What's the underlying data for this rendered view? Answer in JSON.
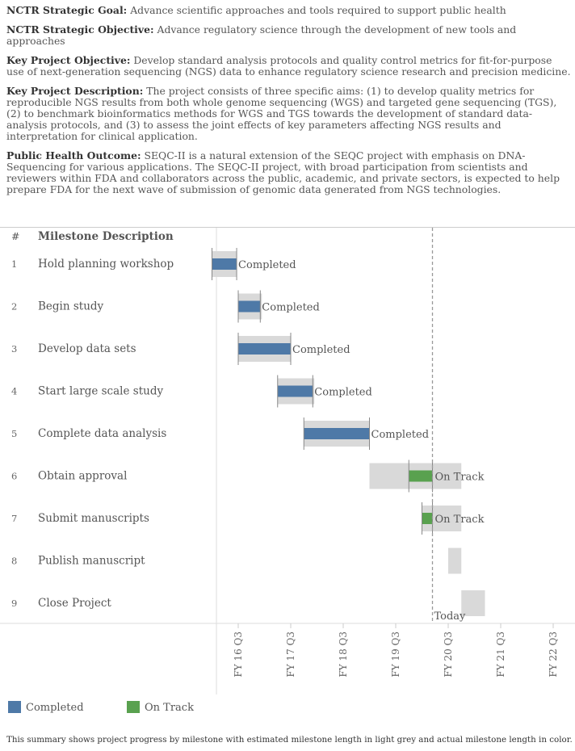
{
  "header": {
    "goal_label": "NCTR Strategic Goal:",
    "goal_text": "Advance scientific approaches and tools required to support public health",
    "objective_label": "NCTR Strategic Objective:",
    "objective_text": "Advance regulatory science through the development of new tools and approaches",
    "key_objective_label": "Key Project Objective:",
    "key_objective_text": "Develop standard analysis protocols and quality control metrics for fit-for-purpose use of next-generation sequencing (NGS) data to enhance regulatory science research and precision medicine.",
    "description_label": "Key Project Description:",
    "description_text": "The project consists of three specific aims: (1) to develop quality metrics for reproducible NGS results from both whole genome sequencing (WGS) and targeted gene sequencing (TGS), (2) to benchmark bioinformatics methods for WGS and TGS towards the development of standard data-analysis protocols, and (3) to assess the joint effects of key parameters affecting NGS results and interpretation for clinical application.",
    "outcome_label": "Public Health Outcome:",
    "outcome_text": "SEQC-II is a natural extension of the SEQC project with emphasis on DNA-Sequencing for various applications. The SEQC-II project, with broad participation from scientists and reviewers within FDA and collaborators across the public, academic, and private sectors, is expected to help prepare FDA for the next wave of submission of genomic data generated from NGS technologies."
  },
  "columns": {
    "number": "#",
    "description": "Milestone Description"
  },
  "colors": {
    "completed": "#4e79a7",
    "on_track": "#59a14f",
    "planned": "#d9d9d9",
    "today_line": "#999999"
  },
  "chart_data": {
    "type": "gantt",
    "x_ticks": [
      "FY 16 Q3",
      "FY 17 Q3",
      "FY 18 Q3",
      "FY 19 Q3",
      "FY 20 Q3",
      "FY 21 Q3",
      "FY 22 Q3"
    ],
    "x_range": [
      2015.7,
      2022.3
    ],
    "today": 2020.2,
    "today_label": "Today",
    "milestones": [
      {
        "num": "1",
        "name": "Hold planning workshop",
        "planned": [
          2016.0,
          2016.47
        ],
        "actual": [
          2016.0,
          2016.47
        ],
        "status": "Completed"
      },
      {
        "num": "2",
        "name": "Begin study",
        "planned": [
          2016.5,
          2016.95
        ],
        "actual": [
          2016.5,
          2016.92
        ],
        "status": "Completed"
      },
      {
        "num": "3",
        "name": "Develop data sets",
        "planned": [
          2016.5,
          2017.5
        ],
        "actual": [
          2016.5,
          2017.5
        ],
        "status": "Completed"
      },
      {
        "num": "4",
        "name": "Start large scale study",
        "planned": [
          2017.25,
          2017.95
        ],
        "actual": [
          2017.25,
          2017.92
        ],
        "status": "Completed"
      },
      {
        "num": "5",
        "name": "Complete data analysis",
        "planned": [
          2017.75,
          2019.0
        ],
        "actual": [
          2017.75,
          2019.0
        ],
        "status": "Completed"
      },
      {
        "num": "6",
        "name": "Obtain approval",
        "planned": [
          2019.0,
          2020.75
        ],
        "actual": [
          2019.75,
          2020.2
        ],
        "status": "On Track"
      },
      {
        "num": "7",
        "name": "Submit manuscripts",
        "planned": [
          2020.0,
          2020.75
        ],
        "actual": [
          2020.0,
          2020.2
        ],
        "status": "On Track"
      },
      {
        "num": "8",
        "name": "Publish manuscript",
        "planned": [
          2020.5,
          2020.75
        ],
        "actual": null,
        "status": ""
      },
      {
        "num": "9",
        "name": "Close Project",
        "planned": [
          2020.75,
          2021.2
        ],
        "actual": null,
        "status": ""
      }
    ]
  },
  "legend": {
    "completed": "Completed",
    "on_track": "On Track"
  },
  "footnote": "This summary shows project progress by milestone with estimated milestone length in light grey and actual milestone length in color."
}
